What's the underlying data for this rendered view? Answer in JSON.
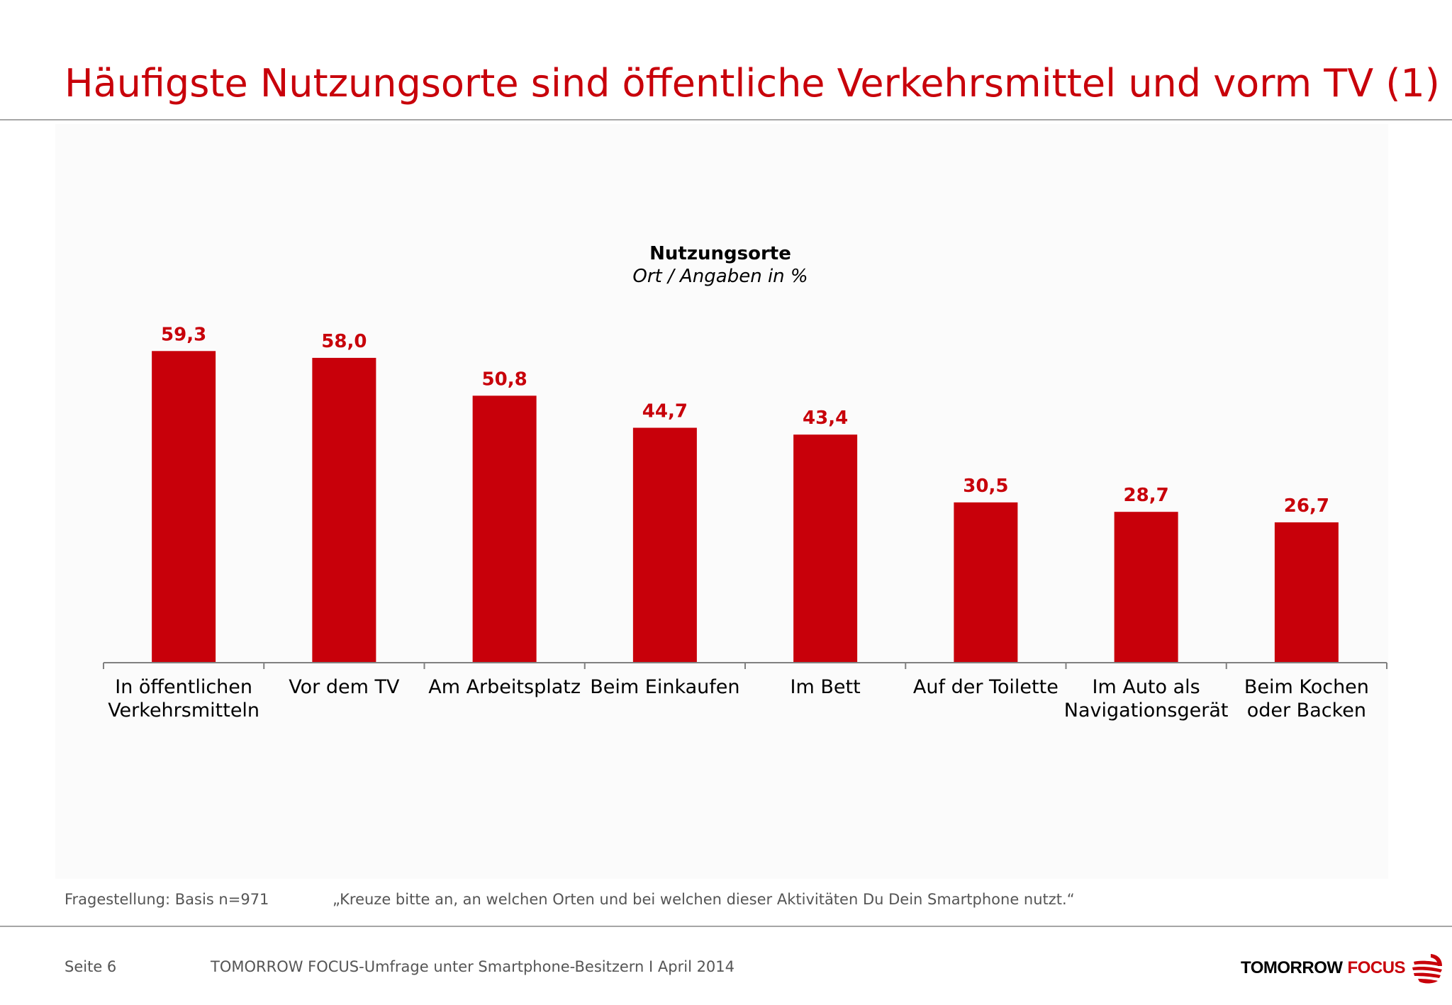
{
  "slide": {
    "title": "Häufigste Nutzungsorte sind öffentliche Verkehrsmittel und vorm TV (1)",
    "footnote_label": "Fragestellung: Basis n=971",
    "footnote_question": "„Kreuze bitte an, an welchen Orten und bei welchen dieser Aktivitäten Du Dein Smartphone nutzt.“",
    "page_label": "Seite 6",
    "footer_source": "TOMORROW FOCUS-Umfrage unter Smartphone-Besitzern I April 2014",
    "logo_text_1": "TOMORROW",
    "logo_text_2": "FOCUS"
  },
  "colors": {
    "accent": "#c8000a",
    "rule": "#a6a6a6",
    "axis": "#808080"
  },
  "chart_data": {
    "type": "bar",
    "title": "Nutzungsorte",
    "subtitle": "Ort / Angaben in %",
    "categories": [
      [
        "In öffentlichen",
        "Verkehrsmitteln"
      ],
      [
        "Vor dem TV"
      ],
      [
        "Am Arbeitsplatz"
      ],
      [
        "Beim Einkaufen"
      ],
      [
        "Im Bett"
      ],
      [
        "Auf der Toilette"
      ],
      [
        "Im Auto als",
        "Navigationsgerät"
      ],
      [
        "Beim Kochen",
        "oder Backen"
      ]
    ],
    "values": [
      59.3,
      58.0,
      50.8,
      44.7,
      43.4,
      30.5,
      28.7,
      26.7
    ],
    "value_labels": [
      "59,3",
      "58,0",
      "50,8",
      "44,7",
      "43,4",
      "30,5",
      "28,7",
      "26,7"
    ],
    "ylim": [
      0,
      70
    ],
    "grid": false,
    "legend": "none"
  }
}
